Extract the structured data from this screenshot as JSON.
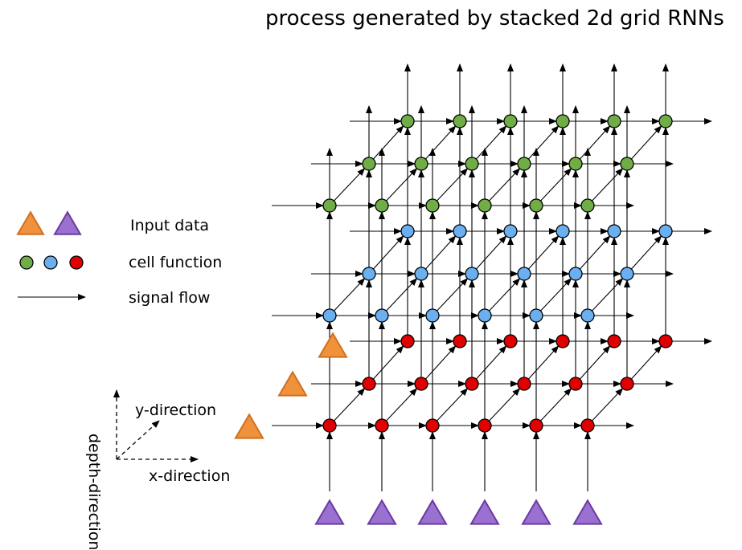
{
  "title": "process generated by stacked 2d grid RNNs",
  "legend": {
    "input_label": "Input data",
    "cell_label": "cell function",
    "flow_label": "signal flow"
  },
  "axes": {
    "x_label": "x-direction",
    "y_label": "y-direction",
    "depth_label": "depth-direction"
  },
  "colors": {
    "green": "#70ad47",
    "blue": "#6ab0f0",
    "red": "#e00000",
    "orange": "#f0913c",
    "orange_stroke": "#d07020",
    "purple": "#9a70d0",
    "purple_stroke": "#6a3aa0"
  },
  "grid": {
    "columns": 6,
    "rows": 3,
    "layers": [
      "red",
      "blue",
      "green"
    ]
  },
  "input_icons": [
    "orange-triangle",
    "purple-triangle"
  ]
}
